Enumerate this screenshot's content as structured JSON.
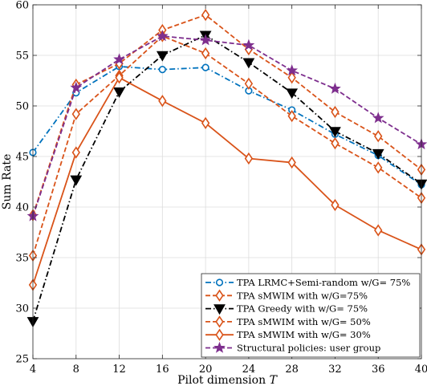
{
  "chart_data": {
    "type": "line",
    "xlabel": "Pilot dimension T",
    "ylabel": "Sum Rate",
    "xlim": [
      4,
      40
    ],
    "ylim": [
      25,
      60
    ],
    "x": [
      4,
      8,
      12,
      16,
      20,
      24,
      28,
      32,
      36,
      40
    ],
    "xticks": [
      4,
      8,
      12,
      16,
      20,
      24,
      28,
      32,
      36,
      40
    ],
    "yticks": [
      25,
      30,
      35,
      40,
      45,
      50,
      55,
      60
    ],
    "grid": true,
    "legend_position": "bottom-right",
    "series": [
      {
        "name": "TPA LRMC+Semi-random w/G= 75%",
        "color": "#0072BD",
        "dash": "dashdot",
        "marker": "circle",
        "values": [
          45.4,
          51.3,
          53.9,
          53.6,
          53.8,
          51.5,
          49.6,
          47.2,
          45.1,
          42.2
        ]
      },
      {
        "name": "TPA sMWIM with w/G=75%",
        "color": "#D95319",
        "dash": "dashed",
        "marker": "diamond",
        "values": [
          39.2,
          52.1,
          54.2,
          57.5,
          59.0,
          55.6,
          52.8,
          49.4,
          47.0,
          43.7
        ]
      },
      {
        "name": "TPA Greedy with w/G= 75%",
        "color": "#000000",
        "dash": "dashdot",
        "marker": "triangle-down",
        "values": [
          28.7,
          42.7,
          51.4,
          55.0,
          57.0,
          54.3,
          51.3,
          47.5,
          45.3,
          42.3
        ]
      },
      {
        "name": "TPA sMWIM with w/G= 50%",
        "color": "#D95319",
        "dash": "dashed",
        "marker": "diamond",
        "values": [
          35.2,
          49.2,
          53.0,
          56.9,
          55.2,
          52.2,
          49.0,
          46.3,
          43.9,
          40.9
        ]
      },
      {
        "name": "TPA sMWIM with w/G= 30%",
        "color": "#D95319",
        "dash": "solid",
        "marker": "diamond",
        "values": [
          32.3,
          45.4,
          52.8,
          50.5,
          48.3,
          44.8,
          44.4,
          40.2,
          37.7,
          35.8
        ]
      },
      {
        "name": "Structural policies: user group",
        "color": "#7E2F8E",
        "dash": "dashed",
        "marker": "star",
        "values": [
          39.1,
          51.8,
          54.6,
          56.9,
          56.5,
          56.0,
          53.5,
          51.7,
          48.8,
          46.2
        ]
      }
    ]
  }
}
